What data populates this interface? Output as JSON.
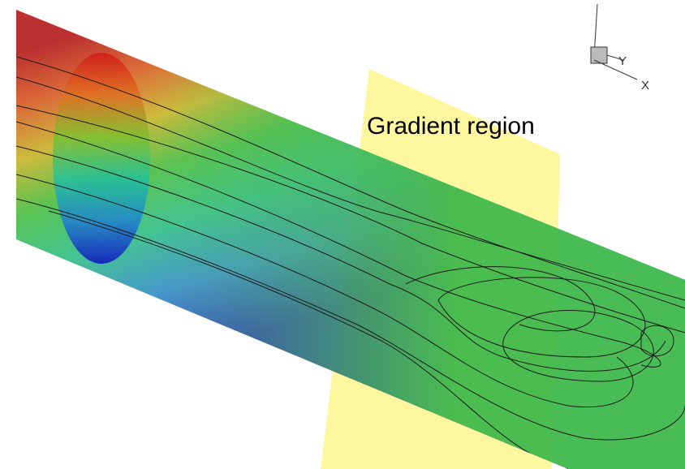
{
  "annotation": "Gradient region",
  "axes": {
    "y": "Y",
    "x": "X"
  }
}
